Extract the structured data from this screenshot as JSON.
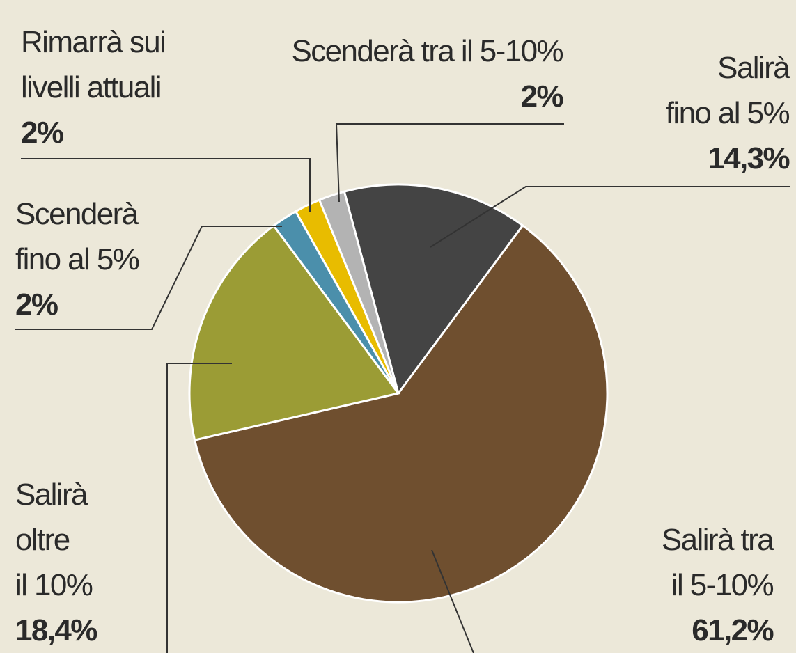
{
  "chart_data": {
    "type": "pie",
    "categories": [
      "Salirà\nfino al 5%",
      "Salirà tra\nil 5-10%",
      "Salirà\noltre\nil 10%",
      "Scenderà\nfino al 5%",
      "Rimarrà sui\nlivelli attuali",
      "Scenderà tra il 5-10%"
    ],
    "values": [
      14.3,
      61.2,
      18.4,
      2,
      2,
      2
    ],
    "value_labels": [
      "14,3%",
      "61,2%",
      "18,4%",
      "2%",
      "2%",
      "2%"
    ],
    "colors": [
      "#444444",
      "#6f4f2f",
      "#9b9c35",
      "#4b8fab",
      "#e8bc00",
      "#b3b3b3"
    ]
  }
}
